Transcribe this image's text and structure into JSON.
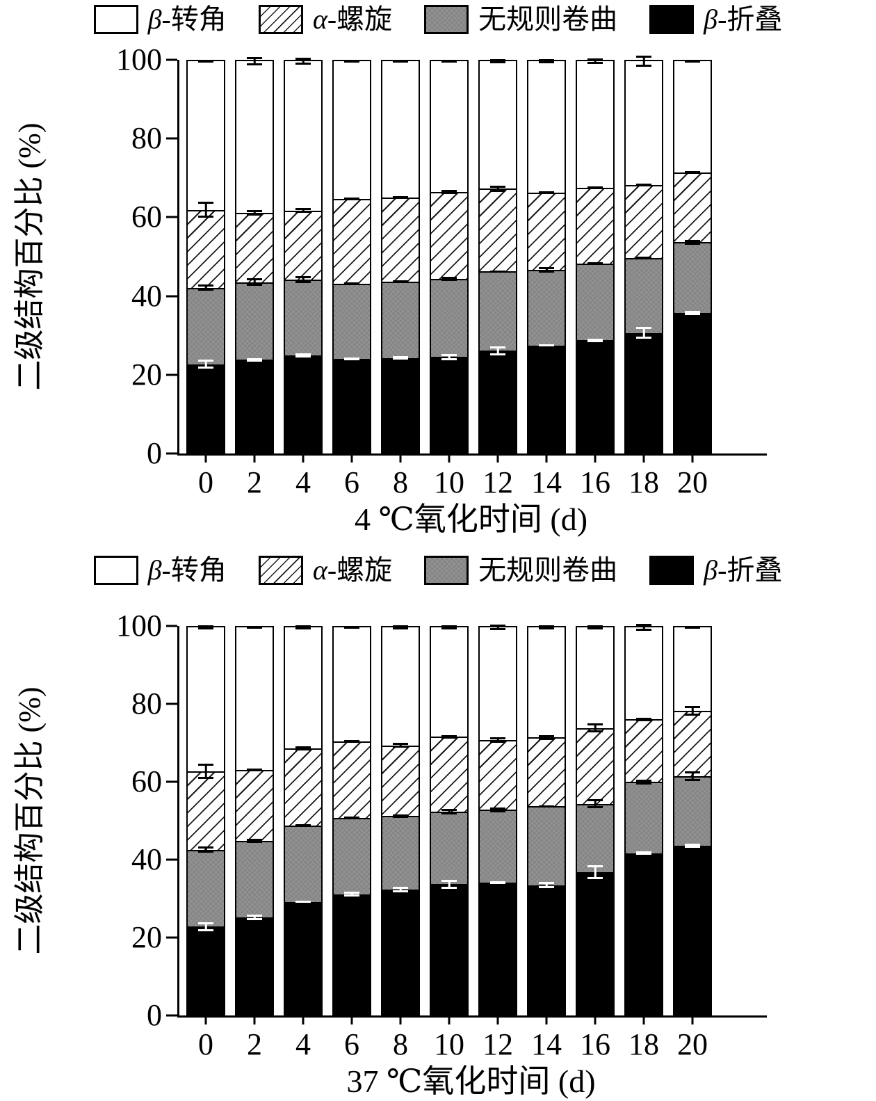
{
  "colors": {
    "background": "#ffffff",
    "axis": "#000000",
    "bar_outline": "#000000",
    "gray_fill": "#8b8b8b",
    "black_fill": "#000000",
    "hatch_line": "#1a1a1a",
    "error_on_dark": "#ffffff",
    "error_on_light": "#000000"
  },
  "legend": {
    "items": [
      {
        "symbol": "β",
        "text": "-转角",
        "fill": "white"
      },
      {
        "symbol": "α",
        "text": "-螺旋",
        "fill": "hatch"
      },
      {
        "symbol": "",
        "text": "无规则卷曲",
        "fill": "gray"
      },
      {
        "symbol": "β",
        "text": "-折叠",
        "fill": "black"
      }
    ]
  },
  "chart_data": [
    {
      "type": "bar",
      "stacked": true,
      "title": "",
      "xlabel": "4 ℃氧化时间 (d)",
      "ylabel": "二级结构百分比 (%)",
      "ylim": [
        0,
        100
      ],
      "yticks": [
        0,
        20,
        40,
        60,
        80,
        100
      ],
      "grid": false,
      "legend_position": "top",
      "categories": [
        "0",
        "2",
        "4",
        "6",
        "8",
        "10",
        "12",
        "14",
        "16",
        "18",
        "20"
      ],
      "series": [
        {
          "name": "β-折叠",
          "fill": "black",
          "values": [
            22.5,
            23.6,
            24.7,
            23.8,
            24.1,
            24.3,
            25.9,
            27.3,
            28.6,
            30.5,
            35.6
          ],
          "errors": [
            1.2,
            0.4,
            0.5,
            0.4,
            0.5,
            0.8,
            1.2,
            0.3,
            0.4,
            1.5,
            0.6
          ]
        },
        {
          "name": "无规则卷曲",
          "fill": "gray",
          "values": [
            19.5,
            19.9,
            19.5,
            19.2,
            19.5,
            20.0,
            20.3,
            19.3,
            19.7,
            19.2,
            18.1
          ],
          "errors": [
            0.8,
            1.0,
            0.9,
            0.2,
            0.3,
            0.5,
            0.3,
            0.7,
            0.3,
            0.3,
            0.6
          ]
        },
        {
          "name": "α-螺旋",
          "fill": "hatch",
          "values": [
            20.0,
            17.7,
            17.6,
            21.7,
            21.5,
            22.3,
            21.2,
            19.8,
            19.3,
            18.7,
            17.9
          ],
          "errors": [
            2.0,
            0.7,
            0.6,
            0.2,
            0.4,
            0.5,
            0.8,
            0.4,
            0.4,
            0.3,
            0.3
          ]
        },
        {
          "name": "β-转角",
          "fill": "white",
          "values": [
            38.0,
            38.8,
            38.2,
            35.3,
            34.9,
            33.4,
            32.6,
            33.6,
            32.4,
            31.6,
            28.4
          ],
          "errors": [
            0.4,
            1.0,
            0.9,
            0.2,
            0.2,
            0.2,
            0.6,
            0.5,
            0.7,
            1.5,
            0.2
          ]
        }
      ]
    },
    {
      "type": "bar",
      "stacked": true,
      "title": "",
      "xlabel": "37 ℃氧化时间 (d)",
      "ylabel": "二级结构百分比 (%)",
      "ylim": [
        0,
        100
      ],
      "yticks": [
        0,
        20,
        40,
        60,
        80,
        100
      ],
      "grid": false,
      "legend_position": "top",
      "categories": [
        "0",
        "2",
        "4",
        "6",
        "8",
        "10",
        "12",
        "14",
        "16",
        "18",
        "20"
      ],
      "series": [
        {
          "name": "β-折叠",
          "fill": "black",
          "values": [
            22.6,
            25.0,
            29.0,
            31.0,
            32.2,
            33.6,
            34.0,
            33.3,
            36.7,
            41.6,
            43.5
          ],
          "errors": [
            1.2,
            0.8,
            0.3,
            0.6,
            0.7,
            1.2,
            0.3,
            0.8,
            1.8,
            0.5,
            0.6
          ]
        },
        {
          "name": "无规则卷曲",
          "fill": "gray",
          "values": [
            19.9,
            19.8,
            19.8,
            19.7,
            19.0,
            18.7,
            18.8,
            20.4,
            17.7,
            18.4,
            18.0
          ],
          "errors": [
            0.8,
            0.6,
            0.3,
            0.3,
            0.4,
            0.7,
            0.6,
            0.3,
            1.2,
            0.6,
            1.2
          ]
        },
        {
          "name": "α-螺旋",
          "fill": "hatch",
          "values": [
            20.3,
            18.4,
            19.9,
            19.8,
            18.3,
            19.4,
            18.0,
            17.8,
            19.6,
            16.2,
            16.9
          ],
          "errors": [
            2.0,
            0.3,
            0.5,
            0.3,
            0.6,
            0.4,
            0.7,
            0.7,
            1.2,
            0.4,
            1.2
          ]
        },
        {
          "name": "β-转角",
          "fill": "white",
          "values": [
            37.2,
            36.8,
            31.3,
            29.5,
            30.5,
            28.3,
            29.2,
            28.5,
            26.0,
            23.8,
            21.6
          ],
          "errors": [
            0.5,
            0.2,
            0.6,
            0.4,
            0.5,
            0.6,
            0.8,
            0.6,
            0.6,
            0.9,
            0.3
          ]
        }
      ]
    }
  ]
}
